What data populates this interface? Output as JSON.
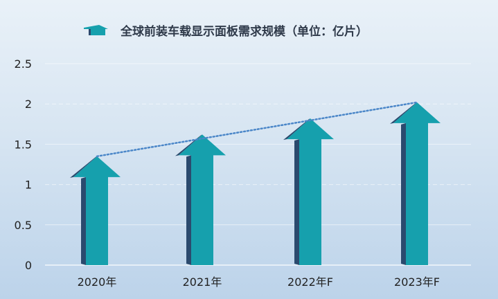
{
  "chart_data": {
    "type": "bar",
    "title": "全球前装车载显示面板需求规模（单位：亿片）",
    "categories": [
      "2020年",
      "2021年",
      "2022年F",
      "2023年F"
    ],
    "series": [
      {
        "name": "全球前装车载显示面板需求规模（单位：亿片）",
        "values": [
          1.35,
          1.62,
          1.82,
          2.02
        ]
      }
    ],
    "yticks": [
      "0",
      "0.5",
      "1",
      "1.5",
      "2",
      "2.5"
    ],
    "ylim": [
      0,
      2.5
    ],
    "grid": true,
    "trendline": true,
    "legend": "top-center",
    "bar_style": "3d-arrow"
  },
  "colors": {
    "arrow_front": "#16a0ad",
    "arrow_side": "#2b4a6e",
    "trend": "#4a86c8",
    "grid": "#ffffff"
  }
}
